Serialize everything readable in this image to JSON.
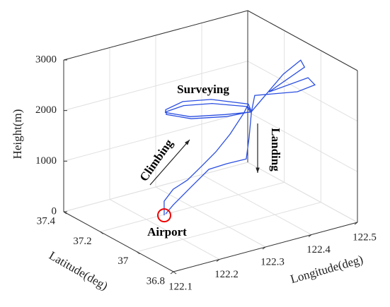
{
  "chart_data": {
    "type": "line3d",
    "xlabel": "Longitude(deg)",
    "ylabel": "Latitude(deg)",
    "zlabel": "Height(m)",
    "xlim": [
      122.1,
      122.5
    ],
    "xticks": [
      122.1,
      122.2,
      122.3,
      122.4,
      122.5
    ],
    "ylim": [
      36.8,
      37.4
    ],
    "yticks": [
      36.8,
      37,
      37.2,
      37.4
    ],
    "zlim": [
      0,
      3000
    ],
    "zticks": [
      0,
      1000,
      2000,
      3000
    ],
    "grid": true,
    "annotations": [
      "Surveying",
      "Climbing",
      "Landing",
      "Airport"
    ],
    "series": [
      {
        "color": "#2b4fe0",
        "x": [
          122.237,
          122.234,
          122.252,
          122.257,
          122.275,
          122.293,
          122.32,
          122.356,
          122.38,
          122.371,
          122.321,
          122.264,
          122.239,
          122.247,
          122.291,
          122.338,
          122.38,
          122.371,
          122.321,
          122.264,
          122.239,
          122.247,
          122.291,
          122.338,
          122.38,
          122.371,
          122.436,
          122.472,
          122.459,
          122.341,
          122.436,
          122.427,
          122.383,
          122.338,
          122.371,
          122.365,
          122.372,
          122.344,
          122.33,
          122.297,
          122.258,
          122.243
        ],
        "y": [
          37.195,
          37.188,
          37.184,
          37.118,
          37.085,
          37.053,
          37.044,
          37.059,
          37.1,
          37.055,
          37.067,
          37.116,
          37.189,
          37.208,
          37.224,
          37.187,
          37.105,
          37.06,
          37.072,
          37.121,
          37.194,
          37.212,
          37.229,
          37.192,
          37.095,
          37.055,
          37.045,
          37.04,
          36.986,
          36.884,
          36.909,
          36.849,
          36.834,
          36.954,
          37.055,
          37.053,
          37.086,
          37.123,
          37.185,
          37.2,
          37.198,
          37.202
        ],
        "z": [
          0,
          300,
          500,
          800,
          1100,
          1400,
          1700,
          2000,
          2000,
          2000,
          2000,
          2000,
          2000,
          2000,
          1980,
          1980,
          1980,
          1980,
          2030,
          2030,
          2030,
          2030,
          2050,
          2050,
          2050,
          2000,
          2600,
          2800,
          2800,
          2800,
          2800,
          2800,
          2800,
          2600,
          2000,
          1500,
          1000,
          900,
          700,
          400,
          150,
          0
        ]
      }
    ]
  }
}
